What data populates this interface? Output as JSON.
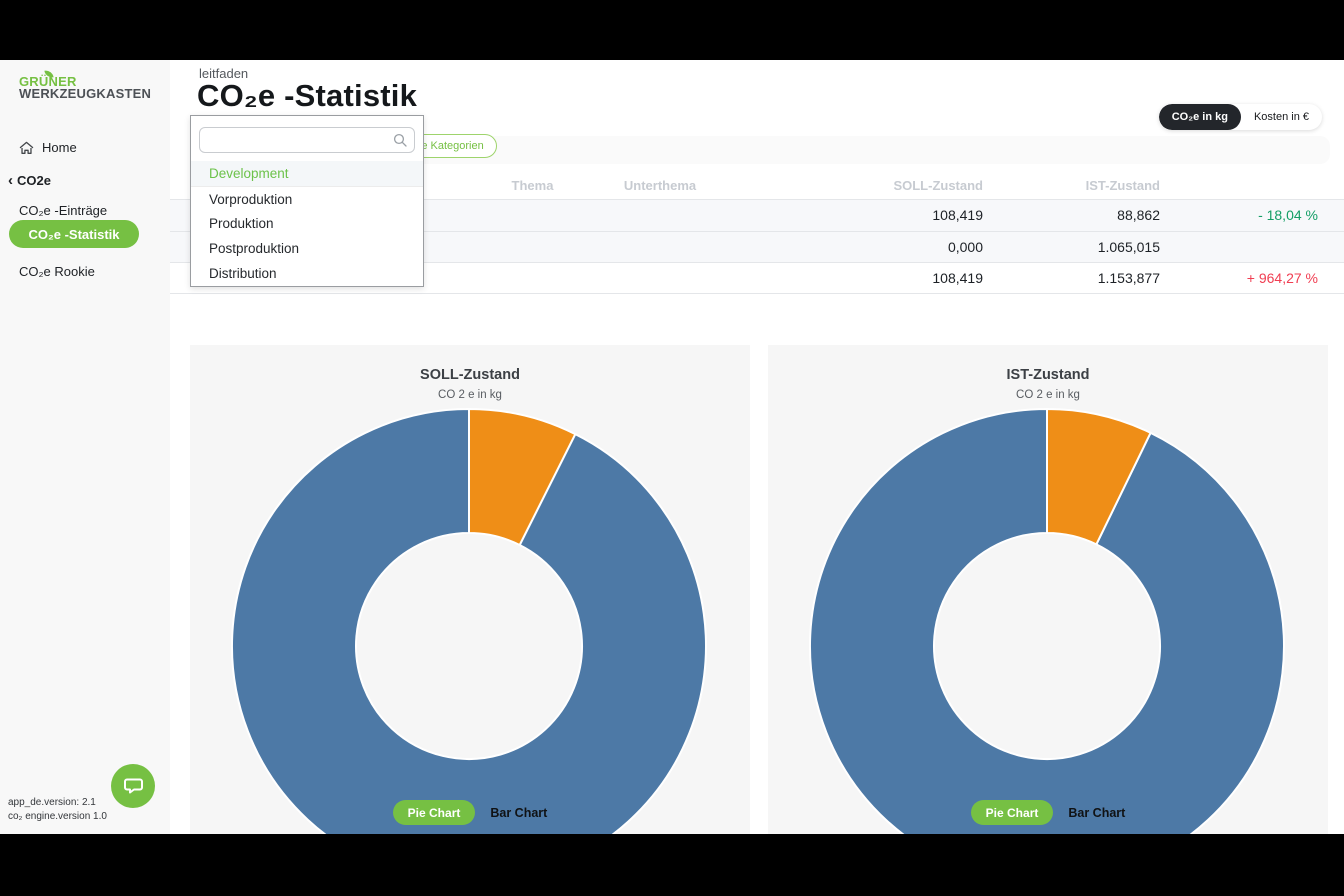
{
  "sidebar": {
    "logo_line1": "GRÜNER",
    "logo_line2": "WERKZEUGKASTEN",
    "home_label": "Home",
    "section_chevron": "‹",
    "section_label": "CO2e",
    "items": [
      {
        "label": "CO₂e -Einträge",
        "active": false
      },
      {
        "label": "CO₂e -Statistik",
        "active": true
      },
      {
        "label": "CO₂e Rookie",
        "active": false
      }
    ],
    "version_line1": "app_de.version: 2.1",
    "version_line2": "co₂ engine.version 1.0"
  },
  "header": {
    "breadcrumb": "leitfaden",
    "title": "CO₂e -Statistik",
    "unit_toggle": {
      "active": "CO₂e in kg",
      "inactive": "Kosten in €"
    }
  },
  "filter": {
    "category_pill": "ohne Kategorien"
  },
  "dropdown": {
    "search_placeholder": "",
    "search_value": "",
    "items": [
      {
        "label": "Development",
        "selected": true
      },
      {
        "label": "Vorproduktion",
        "selected": false
      },
      {
        "label": "Produktion",
        "selected": false
      },
      {
        "label": "Postproduktion",
        "selected": false
      },
      {
        "label": "Distribution",
        "selected": false
      }
    ]
  },
  "table": {
    "headers": {
      "thema": "Thema",
      "unterthema": "Unterthema",
      "soll": "SOLL-Zustand",
      "ist": "IST-Zustand",
      "change": ""
    },
    "rows": [
      {
        "thema": "",
        "unterthema": "",
        "soll": "108,419",
        "ist": "88,862",
        "change": "- 18,04 %",
        "change_dir": "pos"
      },
      {
        "thema": "",
        "unterthema": "",
        "soll": "0,000",
        "ist": "1.065,015",
        "change": "",
        "change_dir": ""
      },
      {
        "thema": "",
        "unterthema": "",
        "soll": "108,419",
        "ist": "1.153,877",
        "change": "+ 964,27 %",
        "change_dir": "neg"
      }
    ]
  },
  "charts": [
    {
      "title": "SOLL-Zustand",
      "subtitle": "CO 2 e in kg",
      "pie_label": "Pie Chart",
      "bar_label": "Bar Chart"
    },
    {
      "title": "IST-Zustand",
      "subtitle": "CO 2 e in kg",
      "pie_label": "Pie Chart",
      "bar_label": "Bar Chart"
    }
  ],
  "chart_data": [
    {
      "type": "pie",
      "title": "SOLL-Zustand",
      "subtitle": "CO 2 e in kg",
      "donut": true,
      "start_angle_deg_from_top": 0,
      "segments": [
        {
          "label": "",
          "pct": 7.4,
          "color": "#ef8e17"
        },
        {
          "label": "",
          "pct": 92.6,
          "color": "#4d79a6"
        }
      ]
    },
    {
      "type": "pie",
      "title": "IST-Zustand",
      "subtitle": "CO 2 e in kg",
      "donut": true,
      "start_angle_deg_from_top": 0,
      "segments": [
        {
          "label": "",
          "pct": 7.2,
          "color": "#ef8e17"
        },
        {
          "label": "",
          "pct": 92.8,
          "color": "#4d79a6"
        }
      ]
    }
  ],
  "colors": {
    "brand_green": "#76c043",
    "pie_blue": "#4d79a6",
    "pie_orange": "#ef8e17",
    "change_green": "#149e66",
    "change_red": "#f03e52",
    "active_toggle_dark": "#23262b"
  }
}
